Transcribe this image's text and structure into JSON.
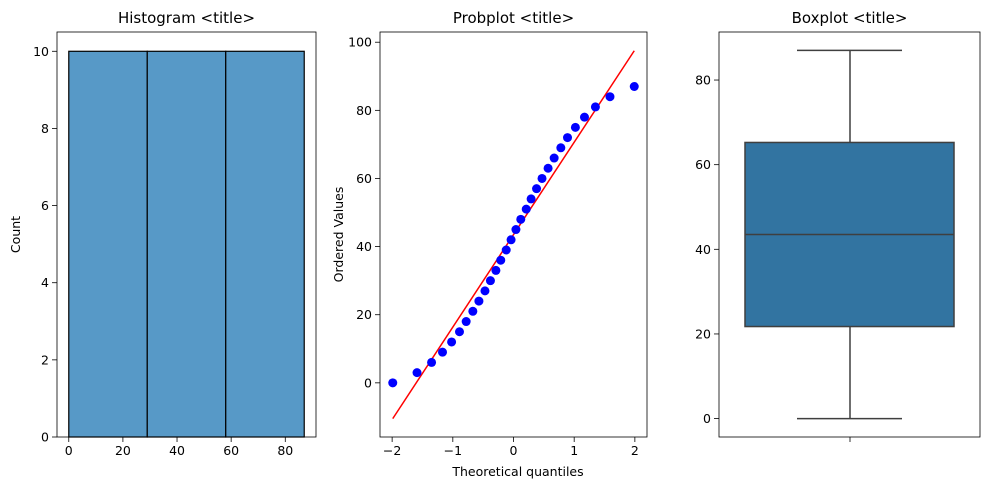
{
  "chart_data": [
    {
      "type": "bar",
      "title": "Histogram <title>",
      "xlabel": "",
      "ylabel": "Count",
      "bin_edges": [
        0,
        29,
        58,
        87
      ],
      "values": [
        10,
        10,
        10
      ],
      "xlim": [
        -4.35,
        91.35
      ],
      "ylim": [
        0,
        10.5
      ],
      "xticks": [
        0,
        20,
        40,
        60,
        80
      ],
      "yticks": [
        0,
        2,
        4,
        6,
        8,
        10
      ],
      "bar_color": "#5799c7",
      "edge_color": "#000000"
    },
    {
      "type": "scatter",
      "title": "Probplot <title>",
      "xlabel": "Theoretical quantiles",
      "ylabel": "Ordered Values",
      "x": [
        -1.99,
        -1.59,
        -1.35,
        -1.17,
        -1.02,
        -0.89,
        -0.78,
        -0.67,
        -0.57,
        -0.47,
        -0.38,
        -0.29,
        -0.21,
        -0.12,
        -0.04,
        0.04,
        0.12,
        0.21,
        0.29,
        0.38,
        0.47,
        0.57,
        0.67,
        0.78,
        0.89,
        1.02,
        1.17,
        1.35,
        1.59,
        1.99
      ],
      "y": [
        0,
        3,
        6,
        9,
        12,
        15,
        18,
        21,
        24,
        27,
        30,
        33,
        36,
        39,
        42,
        45,
        48,
        51,
        54,
        57,
        60,
        63,
        66,
        69,
        72,
        75,
        78,
        81,
        84,
        87
      ],
      "fit_line": {
        "x": [
          -1.99,
          1.99
        ],
        "y": [
          -10.5,
          97.5
        ]
      },
      "xlim": [
        -2.2,
        2.2
      ],
      "ylim": [
        -15.9,
        103.0
      ],
      "xticks": [
        -2,
        -1,
        0,
        1,
        2
      ],
      "yticks": [
        0,
        20,
        40,
        60,
        80,
        100
      ],
      "point_color": "#0000ff",
      "line_color": "#ff0000"
    },
    {
      "type": "box",
      "title": "Boxplot <title>",
      "xlabel": "",
      "ylabel": "",
      "min": 0,
      "q1": 21.75,
      "median": 43.5,
      "q3": 65.25,
      "max": 87,
      "ylim": [
        -4.35,
        91.35
      ],
      "yticks": [
        0,
        20,
        40,
        60,
        80
      ],
      "box_color": "#3274a1",
      "line_color": "#3f3f3f"
    }
  ]
}
